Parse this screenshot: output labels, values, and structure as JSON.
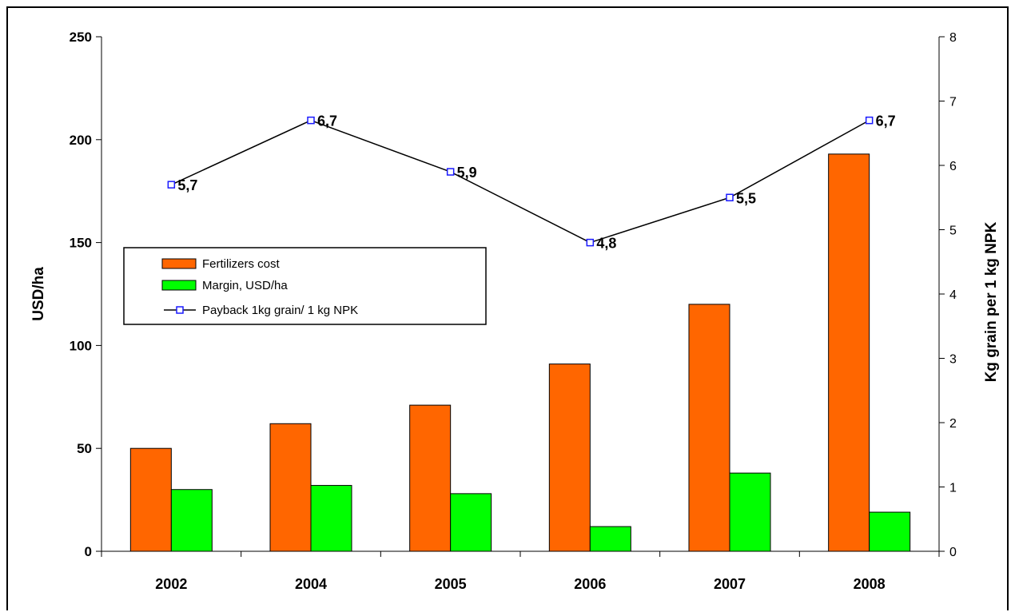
{
  "chart_data": {
    "type": "bar",
    "categories": [
      "2002",
      "2004",
      "2005",
      "2006",
      "2007",
      "2008"
    ],
    "series": [
      {
        "name": "Fertilizers cost",
        "type": "bar",
        "axis": "left",
        "color": "#ff6600",
        "values": [
          50,
          62,
          71,
          91,
          120,
          193
        ]
      },
      {
        "name": "Margin, USD/ha",
        "type": "bar",
        "axis": "left",
        "color": "#00ff00",
        "values": [
          30,
          32,
          28,
          12,
          38,
          19
        ]
      },
      {
        "name": "Payback 1kg grain/ 1 kg NPK",
        "type": "line",
        "axis": "right",
        "color": "#000000",
        "marker_color": "#1a1aff",
        "values": [
          5.7,
          6.7,
          5.9,
          4.8,
          5.5,
          6.7
        ],
        "labels": [
          "5,7",
          "6,7",
          "5,9",
          "4,8",
          "5,5",
          "6,7"
        ]
      }
    ],
    "ylabel": "USD/ha",
    "ylabel_right": "Kg grain per 1 kg NPK",
    "ylim": [
      0,
      250
    ],
    "ylim_right": [
      0,
      8
    ],
    "yticks": [
      "0",
      "50",
      "100",
      "150",
      "200",
      "250"
    ],
    "yticks_right": [
      "0",
      "1",
      "2",
      "3",
      "4",
      "5",
      "6",
      "7",
      "8"
    ],
    "grid": false,
    "legend_position": "center-left"
  }
}
